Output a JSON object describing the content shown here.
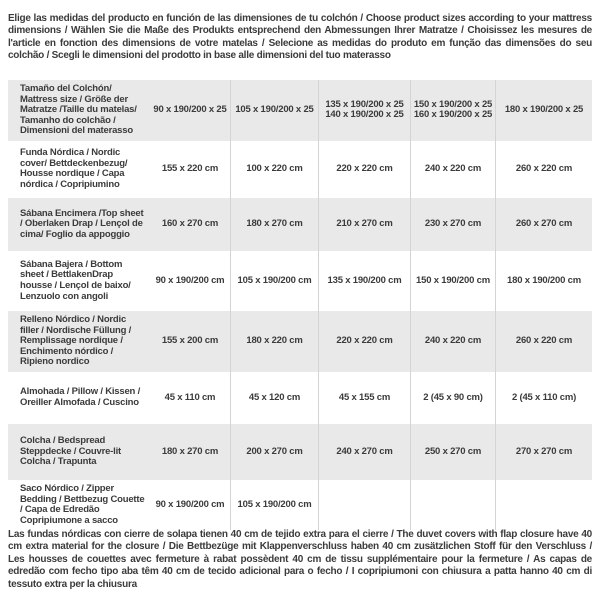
{
  "intro": "Elige las medidas del producto en función de las dimensiones de tu colchón / Choose product sizes according to your mattress dimensions / Wählen Sie die Maße des Produkts entsprechend den Abmessungen Ihrer Matratze / Choisissez les mesures de l'article en fonction des dimensions de votre matelas / Selecione as medidas do produto em função das dimensões do seu colchão / Scegli le dimensioni del prodotto in base alle dimensioni del tuo materasso",
  "footer": "Las fundas nórdicas con cierre de solapa tienen 40 cm de tejido extra para el cierre  / The duvet covers with flap closure have 40 cm extra material for the closure / Die Bettbezüge mit Klappenverschluss haben 40 cm zusätzlichen Stoff für den Verschluss / Les housses de couettes avec fermeture à rabat possèdent 40 cm de tissu supplémentaire pour la fermeture / As capas de edredão com fecho tipo aba têm 40 cm de tecido adicional para o fecho / I copripiumoni con chiusura a patta hanno 40 cm di tessuto extra per la chiusura",
  "colors": {
    "stripe": "#e9e9e9",
    "text": "#3b3b3b",
    "border": "#d4d4d4"
  },
  "table": {
    "rows": [
      {
        "label": "Tamaño del Colchón/ Mattress size / Größe der Matratze /Taille du matelas/ Tamanho do colchão / Dimensioni del materasso",
        "values": [
          "90 x 190/200 x 25",
          "105 x 190/200 x 25",
          "135 x 190/200 x 25\n140 x 190/200 x 25",
          "150 x 190/200 x 25\n160 x 190/200 x 25",
          "180 x 190/200 x 25"
        ]
      },
      {
        "label": "Funda Nórdica /  Nordic cover/ Bettdeckenbezug/ Housse nordique  / Capa nórdica / Copripiumino",
        "values": [
          "155 x 220 cm",
          "100 x 220 cm",
          "220 x 220 cm",
          "240 x 220 cm",
          "260 x 220 cm"
        ]
      },
      {
        "label": "Sábana Encimera /Top sheet / Oberlaken Drap / Lençol de cima/ Foglio da appoggio",
        "values": [
          "160 x 270 cm",
          "180 x 270 cm",
          "210 x 270 cm",
          "230 x 270 cm",
          "260 x 270 cm"
        ]
      },
      {
        "label": "Sábana Bajera / Bottom sheet / BettlakenDrap housse / Lençol de baixo/ Lenzuolo con angoli",
        "values": [
          "90 x 190/200 cm",
          "105 x 190/200 cm",
          "135 x 190/200 cm",
          "150 x 190/200 cm",
          "180 x 190/200 cm"
        ]
      },
      {
        "label": "Relleno Nórdico / Nordic filler / Nordische Füllung / Remplissage nordique / Enchimento nórdico / Ripieno nordico",
        "values": [
          "155 x 200 cm",
          "180 x 220 cm",
          "220 x 220 cm",
          "240 x 220 cm",
          "260 x 220 cm"
        ]
      },
      {
        "label": "Almohada  / Pillow / Kissen / Oreiller Almofada / Cuscino",
        "values": [
          "45 x 110 cm",
          "45 x 120 cm",
          "45 x 155 cm",
          "2 (45 x 90 cm)",
          "2 (45 x 110 cm)"
        ]
      },
      {
        "label": "Colcha / Bedspread Steppdecke / Couvre-lit Colcha / Trapunta",
        "values": [
          "180 x 270 cm",
          "200 x 270 cm",
          "240 x 270 cm",
          "250 x 270 cm",
          "270 x 270 cm"
        ]
      },
      {
        "label": "Saco Nórdico / Zipper Bedding / Bettbezug Couette  / Capa de Edredão Copripiumone a sacco",
        "values": [
          "90 x 190/200 cm",
          "105 x 190/200 cm",
          "",
          "",
          ""
        ]
      }
    ]
  }
}
